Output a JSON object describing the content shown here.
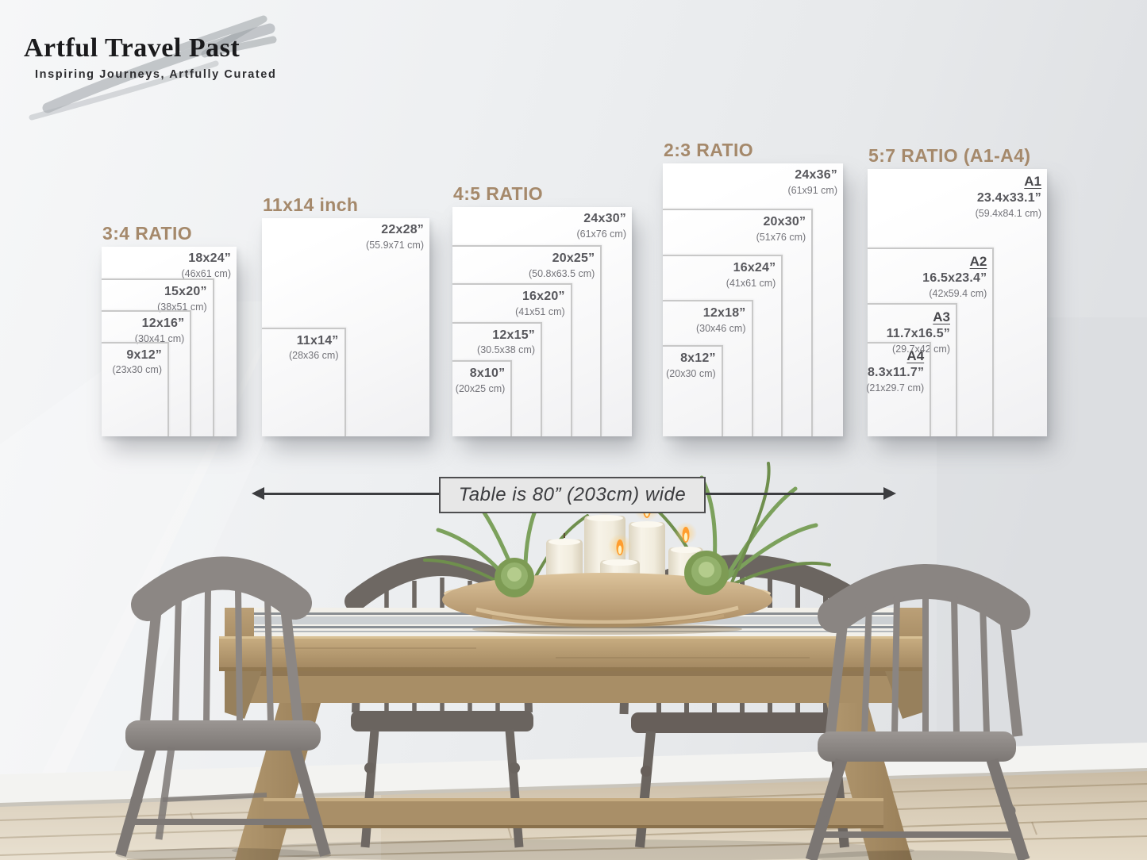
{
  "brand": {
    "name": "Artful Travel Past",
    "tagline": "Inspiring Journeys, Artfully Curated"
  },
  "panels": [
    {
      "heading": "3:4 RATIO",
      "sizes": [
        {
          "label": "18x24”",
          "metric": "(46x61 cm)",
          "w_in": 18,
          "h_in": 24
        },
        {
          "label": "15x20”",
          "metric": "(38x51 cm)",
          "w_in": 15,
          "h_in": 20
        },
        {
          "label": "12x16”",
          "metric": "(30x41 cm)",
          "w_in": 12,
          "h_in": 16
        },
        {
          "label": "9x12”",
          "metric": "(23x30 cm)",
          "w_in": 9,
          "h_in": 12
        }
      ]
    },
    {
      "heading": "11x14 inch",
      "sizes": [
        {
          "label": "22x28”",
          "metric": "(55.9x71 cm)",
          "w_in": 22,
          "h_in": 28
        },
        {
          "label": "11x14”",
          "metric": "(28x36 cm)",
          "w_in": 11,
          "h_in": 14
        }
      ]
    },
    {
      "heading": "4:5 RATIO",
      "sizes": [
        {
          "label": "24x30”",
          "metric": "(61x76 cm)",
          "w_in": 24,
          "h_in": 30
        },
        {
          "label": "20x25”",
          "metric": "(50.8x63.5 cm)",
          "w_in": 20,
          "h_in": 25
        },
        {
          "label": "16x20”",
          "metric": "(41x51 cm)",
          "w_in": 16,
          "h_in": 20
        },
        {
          "label": "12x15”",
          "metric": "(30.5x38 cm)",
          "w_in": 12,
          "h_in": 15
        },
        {
          "label": "8x10”",
          "metric": "(20x25 cm)",
          "w_in": 8,
          "h_in": 10
        }
      ]
    },
    {
      "heading": "2:3 RATIO",
      "sizes": [
        {
          "label": "24x36”",
          "metric": "(61x91 cm)",
          "w_in": 24,
          "h_in": 36
        },
        {
          "label": "20x30”",
          "metric": "(51x76 cm)",
          "w_in": 20,
          "h_in": 30
        },
        {
          "label": "16x24”",
          "metric": "(41x61 cm)",
          "w_in": 16,
          "h_in": 24
        },
        {
          "label": "12x18”",
          "metric": "(30x46 cm)",
          "w_in": 12,
          "h_in": 18
        },
        {
          "label": "8x12”",
          "metric": "(20x30 cm)",
          "w_in": 8,
          "h_in": 12
        }
      ]
    },
    {
      "heading": "5:7 RATIO (A1-A4)",
      "sizes": [
        {
          "name": "A1",
          "label": "23.4x33.1”",
          "metric": "(59.4x84.1 cm)",
          "w_in": 23.4,
          "h_in": 33.1
        },
        {
          "name": "A2",
          "label": "16.5x23.4”",
          "metric": "(42x59.4 cm)",
          "w_in": 16.5,
          "h_in": 23.4
        },
        {
          "name": "A3",
          "label": "11.7x16.5”",
          "metric": "(29.7x42 cm)",
          "w_in": 11.7,
          "h_in": 16.5
        },
        {
          "name": "A4",
          "label": "8.3x11.7”",
          "metric": "(21x29.7 cm)",
          "w_in": 8.3,
          "h_in": 11.7
        }
      ]
    }
  ],
  "table_width_label": "Table is 80” (203cm) wide",
  "colors": {
    "heading": "#a5896b",
    "size_label": "#57575c",
    "metric_label": "#74747a",
    "frame_border": "#c8c8c8",
    "wall": "#eceef0",
    "wood": "#b59a72",
    "chair_gray": "#8c8784"
  }
}
